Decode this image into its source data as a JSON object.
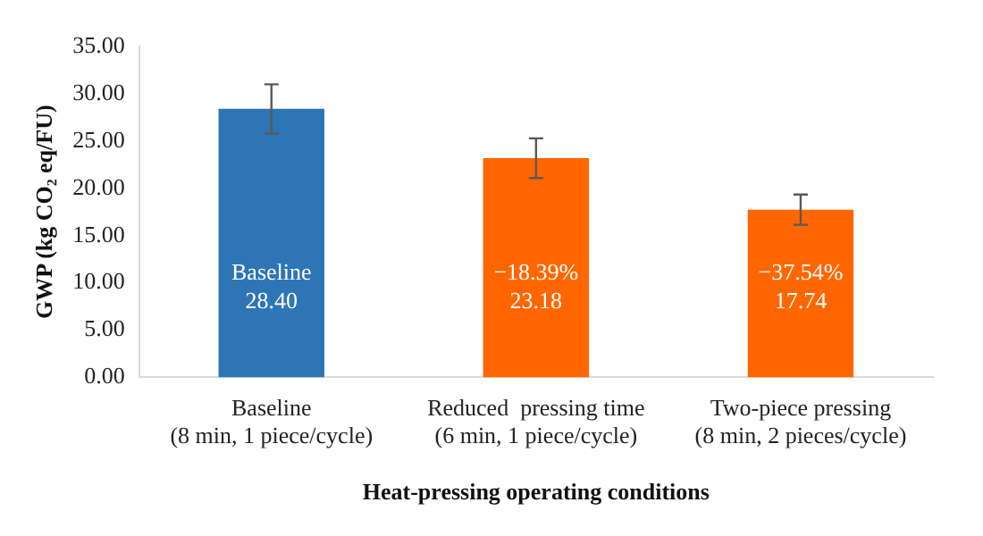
{
  "chart_data": {
    "type": "bar",
    "xlabel": "Heat-pressing operating conditions",
    "ylabel": "GWP (kg CO₂ eq/FU)",
    "categories": [
      "Baseline\n(8 min, 1 piece/cycle)",
      "Reduced  pressing time\n(6 min, 1 piece/cycle)",
      "Two-piece pressing\n(8 min, 2 pieces/cycle)"
    ],
    "values": [
      28.4,
      23.18,
      17.74
    ],
    "colors": [
      "#2e75b6",
      "#ff6600",
      "#ff6600"
    ],
    "errors": [
      2.6,
      2.1,
      1.6
    ],
    "value_labels": [
      "Baseline\n28.40",
      "−18.39%\n23.18",
      "−37.54%\n17.74"
    ],
    "ylim": [
      0,
      35
    ],
    "yticks": [
      {
        "value": 0,
        "label": "0.00"
      },
      {
        "value": 5,
        "label": "5.00"
      },
      {
        "value": 10,
        "label": "10.00"
      },
      {
        "value": 15,
        "label": "15.00"
      },
      {
        "value": 20,
        "label": "20.00"
      },
      {
        "value": 25,
        "label": "25.00"
      },
      {
        "value": 30,
        "label": "30.00"
      },
      {
        "value": 35,
        "label": "35.00"
      }
    ],
    "grid": false,
    "legend": false
  }
}
